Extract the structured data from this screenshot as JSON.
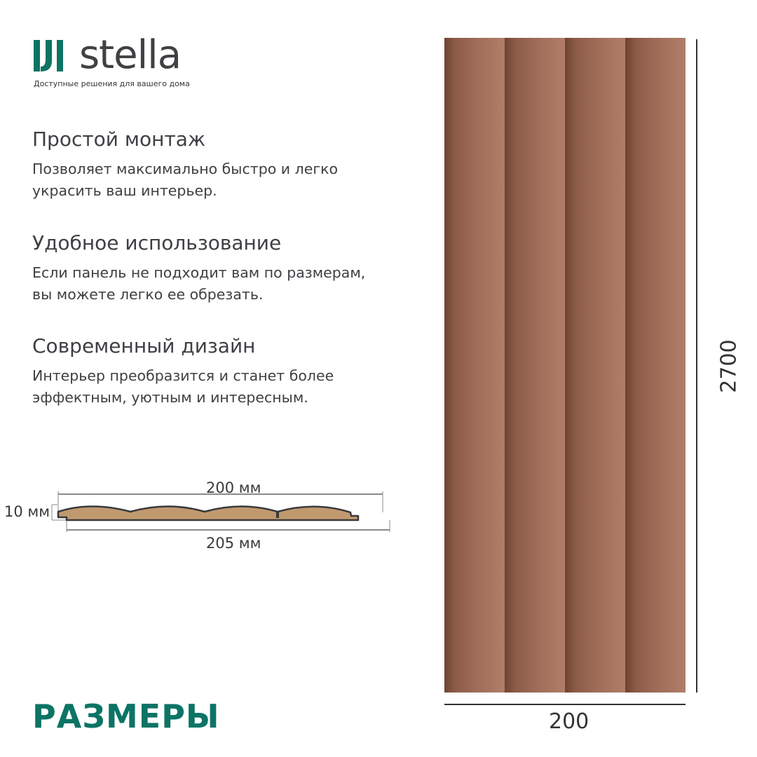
{
  "brand": {
    "name": "stella",
    "tagline": "Доступные решения для вашего дома",
    "accent": "#0c7465"
  },
  "features": [
    {
      "title": "Простой монтаж",
      "lines": [
        "Позволяет максимально быстро и легко",
        "украсить ваш интерьер."
      ]
    },
    {
      "title": "Удобное использование",
      "lines": [
        "Если панель не подходит вам по размерам,",
        "вы можете легко ее обрезать."
      ]
    },
    {
      "title": "Современный дизайн",
      "lines": [
        "Интерьер преобразится и станет более",
        "эффектным, уютным и интересным."
      ]
    }
  ],
  "cross_section": {
    "width_face": "200 мм",
    "width_total": "205 мм",
    "thickness": "10 мм",
    "fill_color": "#c09a6e"
  },
  "panel": {
    "height_label": "2700",
    "width_label": "200",
    "color": "#a06d58"
  },
  "section_title": "РАЗМЕРЫ"
}
